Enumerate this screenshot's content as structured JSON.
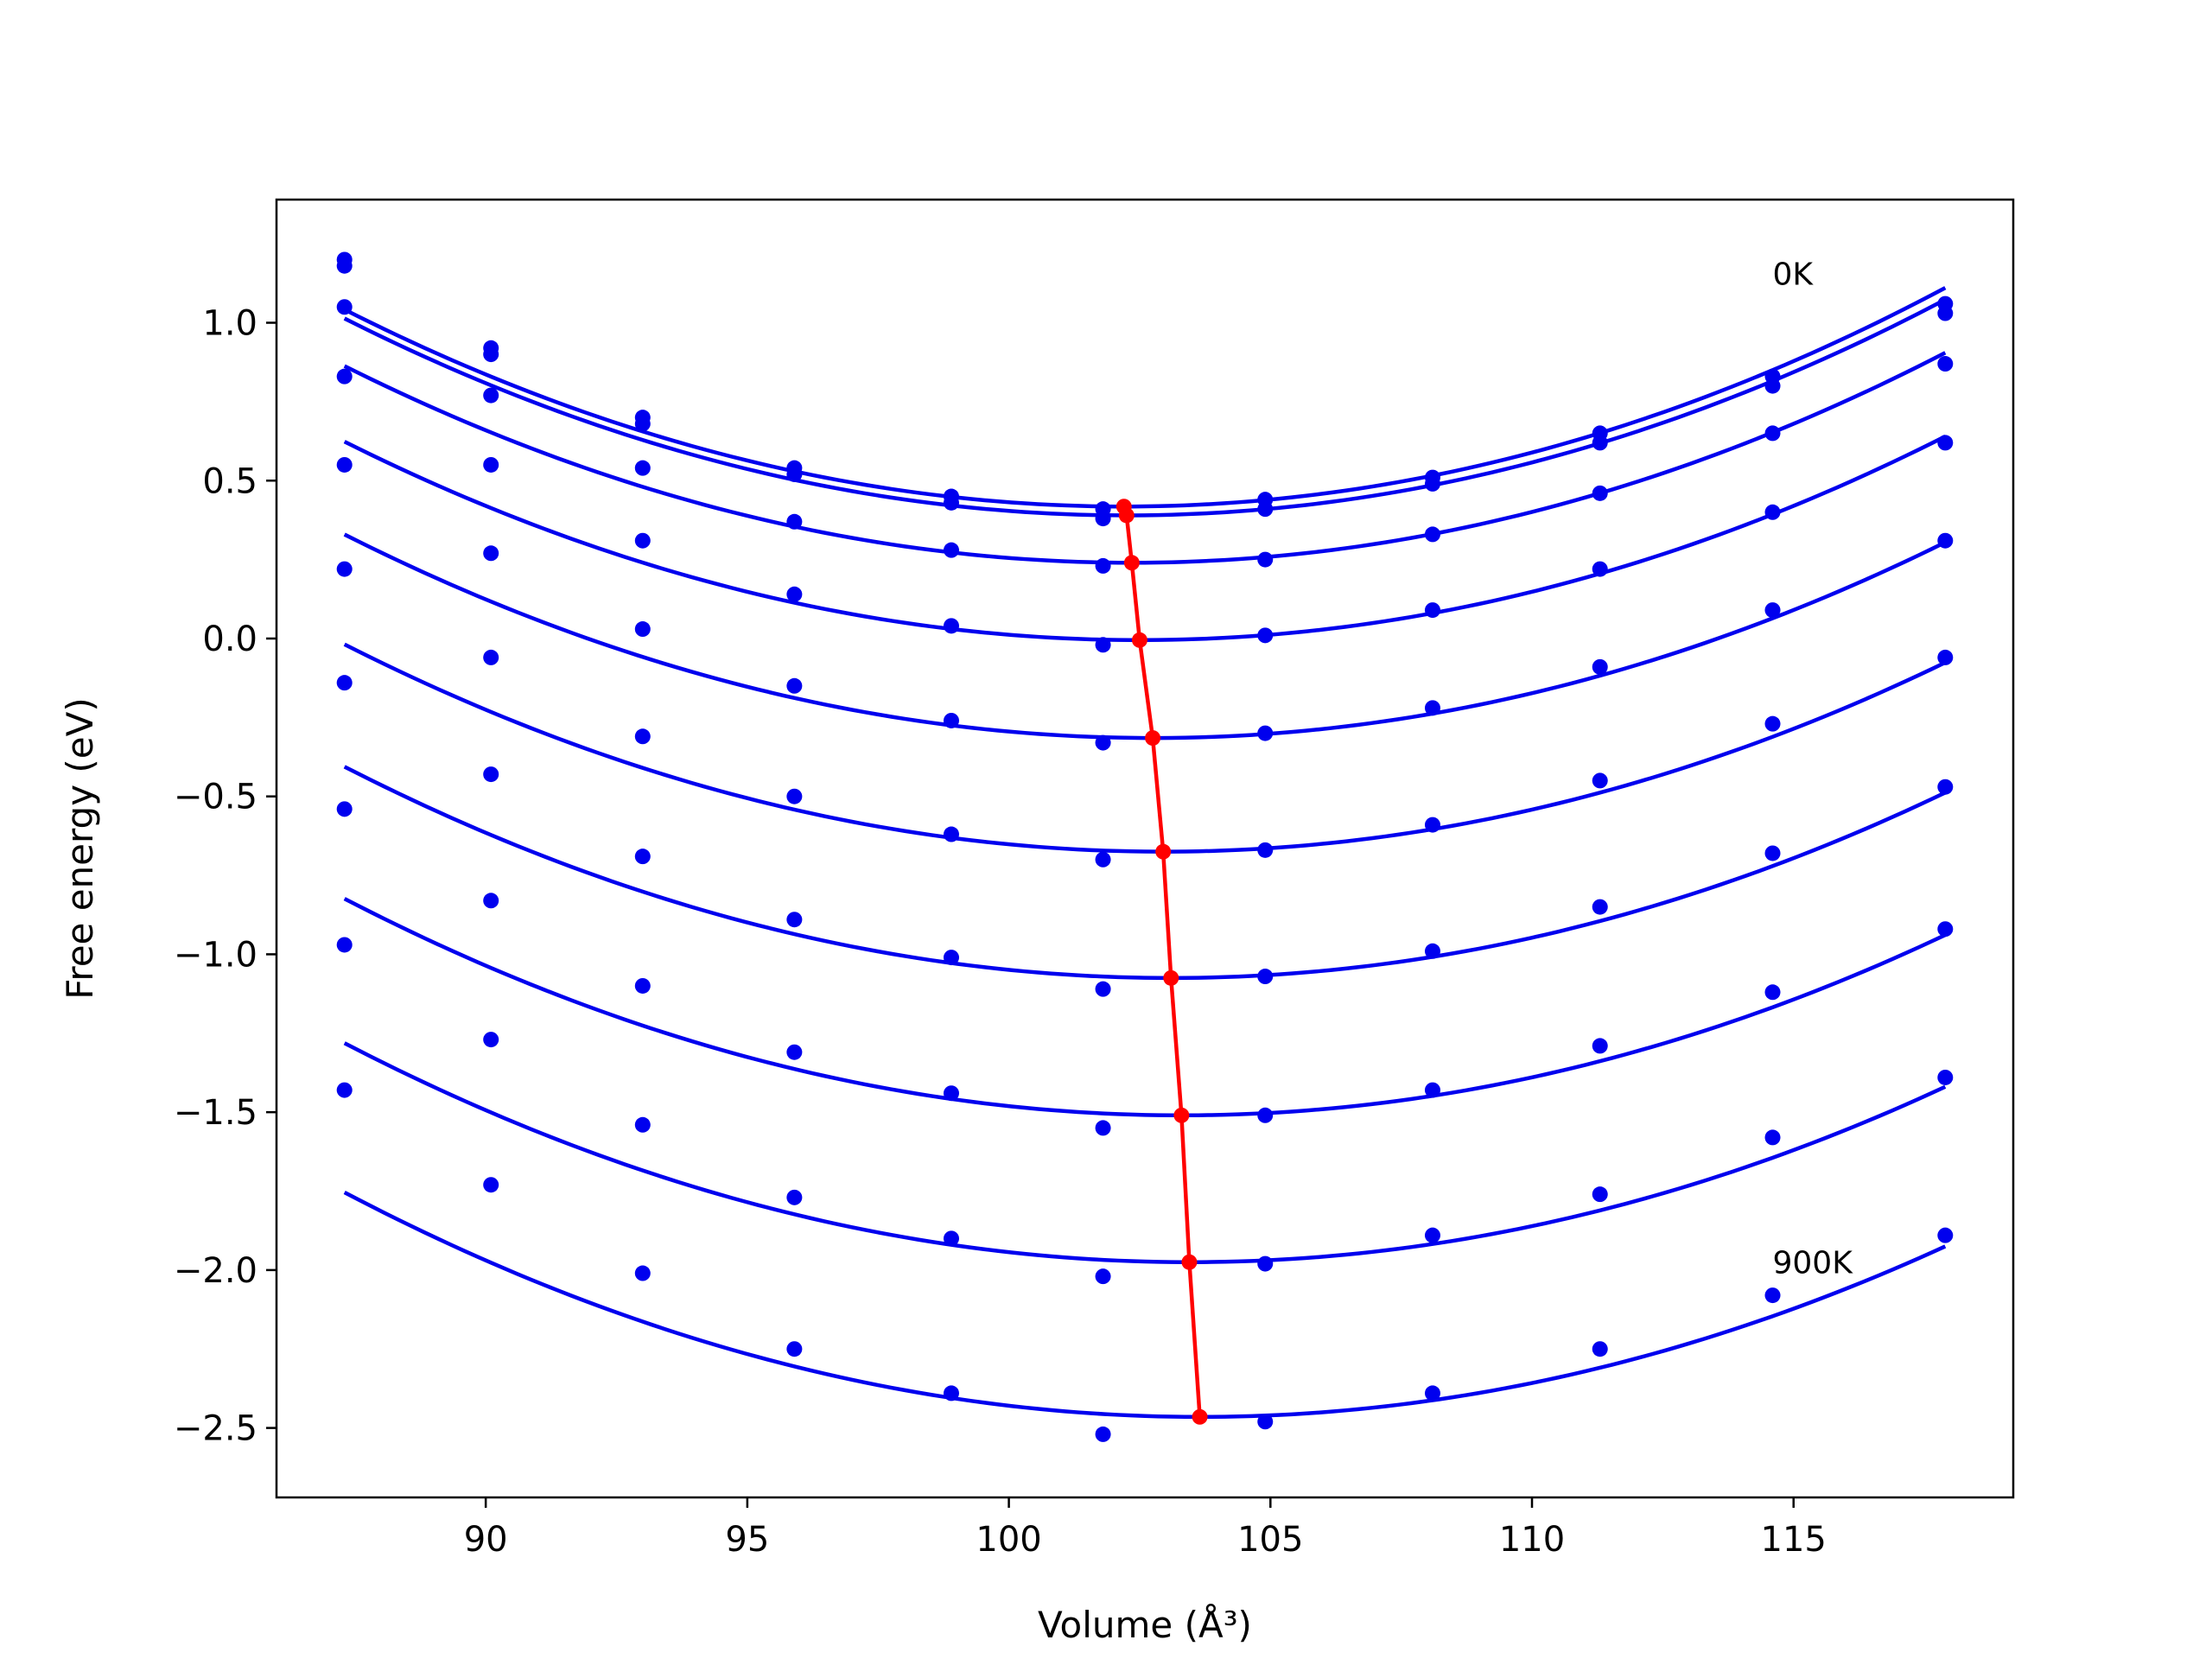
{
  "chart_data": {
    "type": "line",
    "title": "",
    "xlabel": "Volume (Å³)",
    "ylabel": "Free energy (eV)",
    "xlim": [
      86.0,
      119.2
    ],
    "ylim": [
      -2.72,
      1.39
    ],
    "xticks": [
      90,
      95,
      100,
      105,
      110,
      115
    ],
    "yticks": [
      1.0,
      0.5,
      0.0,
      -0.5,
      -1.0,
      -1.5,
      -2.0,
      -2.5
    ],
    "grid": false,
    "legend": "none",
    "colors": {
      "curves": "#0000ee",
      "minima": "#ff0000"
    },
    "annotations": [
      {
        "text": "0K",
        "x": 114.6,
        "y": 1.12
      },
      {
        "text": "900K",
        "x": 114.6,
        "y": -2.01
      }
    ],
    "x": [
      87.3,
      90.1,
      93.0,
      95.9,
      98.9,
      101.8,
      104.9,
      108.1,
      111.3,
      114.6,
      117.9
    ],
    "series": [
      {
        "values": [
          1.2,
          0.92,
          0.7,
          0.54,
          0.45,
          0.41,
          0.44,
          0.51,
          0.65,
          0.83,
          1.06
        ],
        "fit_a": 0.00281,
        "fit_vmin": 102.2,
        "fit_emin": 0.418
      },
      {
        "values": [
          1.18,
          0.9,
          0.68,
          0.52,
          0.43,
          0.38,
          0.41,
          0.49,
          0.62,
          0.8,
          1.03
        ],
        "fit_a": 0.00279,
        "fit_vmin": 102.25,
        "fit_emin": 0.39
      },
      {
        "values": [
          1.05,
          0.77,
          0.54,
          0.37,
          0.28,
          0.23,
          0.25,
          0.33,
          0.46,
          0.65,
          0.87
        ],
        "fit_a": 0.00275,
        "fit_vmin": 102.35,
        "fit_emin": 0.24
      },
      {
        "values": [
          0.83,
          0.55,
          0.31,
          0.14,
          0.04,
          -0.02,
          0.01,
          0.09,
          0.22,
          0.4,
          0.62
        ],
        "fit_a": 0.00272,
        "fit_vmin": 102.5,
        "fit_emin": -0.005
      },
      {
        "values": [
          0.55,
          0.27,
          0.03,
          -0.15,
          -0.26,
          -0.33,
          -0.3,
          -0.22,
          -0.09,
          0.09,
          0.31
        ],
        "fit_a": 0.0027,
        "fit_vmin": 102.75,
        "fit_emin": -0.315
      },
      {
        "values": [
          0.22,
          -0.06,
          -0.31,
          -0.5,
          -0.62,
          -0.7,
          -0.67,
          -0.59,
          -0.45,
          -0.27,
          -0.06
        ],
        "fit_a": 0.00268,
        "fit_vmin": 102.95,
        "fit_emin": -0.675
      },
      {
        "values": [
          -0.14,
          -0.43,
          -0.69,
          -0.89,
          -1.01,
          -1.11,
          -1.07,
          -0.99,
          -0.85,
          -0.68,
          -0.47
        ],
        "fit_a": 0.00268,
        "fit_vmin": 103.1,
        "fit_emin": -1.075
      },
      {
        "values": [
          -0.54,
          -0.83,
          -1.1,
          -1.31,
          -1.44,
          -1.55,
          -1.51,
          -1.43,
          -1.29,
          -1.12,
          -0.92
        ],
        "fit_a": 0.00268,
        "fit_vmin": 103.3,
        "fit_emin": -1.51
      },
      {
        "values": [
          -0.97,
          -1.27,
          -1.54,
          -1.77,
          -1.9,
          -2.02,
          -1.98,
          -1.89,
          -1.76,
          -1.58,
          -1.39
        ],
        "fit_a": 0.00266,
        "fit_vmin": 103.45,
        "fit_emin": -1.975
      },
      {
        "values": [
          -1.43,
          -1.73,
          -2.01,
          -2.25,
          -2.39,
          -2.52,
          -2.48,
          -2.39,
          -2.25,
          -2.08,
          -1.89
        ],
        "fit_a": 0.00266,
        "fit_vmin": 103.65,
        "fit_emin": -2.465
      }
    ]
  }
}
